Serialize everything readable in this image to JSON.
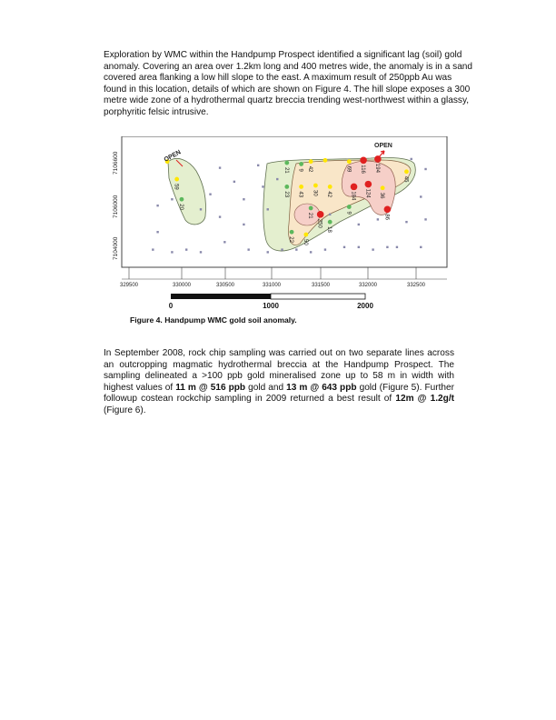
{
  "paragraph1": "Exploration by WMC within the Handpump Prospect identified a significant lag (soil) gold anomaly. Covering an area over 1.2km long and 400 metres wide, the anomaly is in a sand covered area flanking a low hill slope to the east. A maximum result of 250ppb Au was found in this location, details of which are shown on Figure 4. The hill slope exposes a 300 metre wide zone of a hydrothermal quartz breccia trending west-northwest within a glassy, porphyritic felsic intrusive.",
  "paragraph2": {
    "t1": "In September 2008, rock chip sampling was carried out on two separate lines across an outcropping magmatic hydrothermal breccia at the Handpump Prospect.  The sampling delineated a >100 ppb gold mineralised zone up to 58 m in width with highest values of ",
    "b1": "11 m @ 516 ppb",
    "t2": " gold and ",
    "b2": "13 m @ 643 ppb",
    "t3": " gold (Figure 5). Further followup costean rockchip sampling in 2009 returned a best result of ",
    "b3": "12m @ 1.2g/t",
    "t4": " (Figure 6)."
  },
  "figure": {
    "caption": "Figure 4. Handpump WMC gold soil anomaly.",
    "open_labels": [
      "OPEN",
      "OPEN"
    ],
    "y_ticks": [
      "7106600",
      "7106000",
      "7104000"
    ],
    "x_ticks": [
      "329500",
      "330000",
      "330500",
      "331000",
      "331500",
      "332000",
      "332500"
    ],
    "scale_labels": [
      "0",
      "1000",
      "2000"
    ],
    "colors": {
      "green": "#5cb85c",
      "yellow": "#ffe600",
      "red": "#e02020",
      "grey": "#8888aa",
      "zone_green": "#e4efcf",
      "zone_peach": "#f9e6c8",
      "zone_pink": "#f6cfc8"
    },
    "samples": [
      {
        "x": 329800,
        "y": 5.05,
        "v": "",
        "c": "grey"
      },
      {
        "x": 329950,
        "y": 5.3,
        "v": "",
        "c": "grey"
      },
      {
        "x": 329800,
        "y": 4.0,
        "v": "",
        "c": "grey"
      },
      {
        "x": 330250,
        "y": 4.9,
        "v": "",
        "c": "grey"
      },
      {
        "x": 330450,
        "y": 6.55,
        "v": "",
        "c": "grey"
      },
      {
        "x": 330350,
        "y": 5.5,
        "v": "",
        "c": "grey"
      },
      {
        "x": 330450,
        "y": 4.6,
        "v": "",
        "c": "grey"
      },
      {
        "x": 330500,
        "y": 3.6,
        "v": "",
        "c": "grey"
      },
      {
        "x": 330600,
        "y": 6.0,
        "v": "",
        "c": "grey"
      },
      {
        "x": 330700,
        "y": 5.3,
        "v": "",
        "c": "grey"
      },
      {
        "x": 330700,
        "y": 4.3,
        "v": "",
        "c": "grey"
      },
      {
        "x": 330750,
        "y": 3.3,
        "v": "",
        "c": "grey"
      },
      {
        "x": 330850,
        "y": 6.65,
        "v": "",
        "c": "grey"
      },
      {
        "x": 330900,
        "y": 5.8,
        "v": "",
        "c": "grey"
      },
      {
        "x": 330950,
        "y": 4.9,
        "v": "",
        "c": "grey"
      },
      {
        "x": 330950,
        "y": 3.2,
        "v": "",
        "c": "grey"
      },
      {
        "x": 331100,
        "y": 3.3,
        "v": "",
        "c": "grey"
      },
      {
        "x": 331250,
        "y": 3.3,
        "v": "",
        "c": "grey"
      },
      {
        "x": 331400,
        "y": 3.2,
        "v": "",
        "c": "grey"
      },
      {
        "x": 331550,
        "y": 3.3,
        "v": "",
        "c": "grey"
      },
      {
        "x": 331750,
        "y": 3.4,
        "v": "",
        "c": "grey"
      },
      {
        "x": 331900,
        "y": 3.4,
        "v": "",
        "c": "grey"
      },
      {
        "x": 332050,
        "y": 3.3,
        "v": "",
        "c": "grey"
      },
      {
        "x": 332200,
        "y": 3.4,
        "v": "",
        "c": "grey"
      },
      {
        "x": 332300,
        "y": 3.4,
        "v": "",
        "c": "grey"
      },
      {
        "x": 332550,
        "y": 3.4,
        "v": "",
        "c": "grey"
      },
      {
        "x": 331900,
        "y": 4.3,
        "v": "",
        "c": "grey"
      },
      {
        "x": 332100,
        "y": 4.5,
        "v": "",
        "c": "grey"
      },
      {
        "x": 332400,
        "y": 4.4,
        "v": "",
        "c": "grey"
      },
      {
        "x": 332600,
        "y": 4.5,
        "v": "",
        "c": "grey"
      },
      {
        "x": 332550,
        "y": 5.4,
        "v": "",
        "c": "grey"
      },
      {
        "x": 332600,
        "y": 6.5,
        "v": "",
        "c": "grey"
      },
      {
        "x": 332450,
        "y": 6.9,
        "v": "",
        "c": "grey"
      },
      {
        "x": 331050,
        "y": 6.1,
        "v": "",
        "c": "grey"
      },
      {
        "x": 331600,
        "y": 4.7,
        "v": "",
        "c": "grey"
      },
      {
        "x": 329750,
        "y": 3.3,
        "v": "",
        "c": "grey"
      },
      {
        "x": 329950,
        "y": 3.2,
        "v": "",
        "c": "grey"
      },
      {
        "x": 330100,
        "y": 3.3,
        "v": "",
        "c": "grey"
      },
      {
        "x": 330250,
        "y": 3.2,
        "v": "",
        "c": "grey"
      },
      {
        "x": 329900,
        "y": 6.8,
        "v": "",
        "c": "yellow"
      },
      {
        "x": 330000,
        "y": 6.1,
        "v": "59",
        "c": "yellow"
      },
      {
        "x": 330050,
        "y": 5.3,
        "v": "20",
        "c": "green"
      },
      {
        "x": 331150,
        "y": 6.75,
        "v": "21",
        "c": "green"
      },
      {
        "x": 331300,
        "y": 6.7,
        "v": "9",
        "c": "green"
      },
      {
        "x": 331150,
        "y": 5.8,
        "v": "23",
        "c": "green"
      },
      {
        "x": 331400,
        "y": 6.8,
        "v": "42",
        "c": "yellow"
      },
      {
        "x": 331550,
        "y": 6.85,
        "v": "",
        "c": "yellow"
      },
      {
        "x": 331300,
        "y": 5.8,
        "v": "43",
        "c": "yellow"
      },
      {
        "x": 331450,
        "y": 5.85,
        "v": "30",
        "c": "yellow"
      },
      {
        "x": 331600,
        "y": 5.8,
        "v": "42",
        "c": "yellow"
      },
      {
        "x": 331400,
        "y": 4.95,
        "v": "21",
        "c": "green"
      },
      {
        "x": 331500,
        "y": 4.7,
        "v": "250",
        "c": "red"
      },
      {
        "x": 331600,
        "y": 4.4,
        "v": "18",
        "c": "green"
      },
      {
        "x": 331200,
        "y": 4.0,
        "v": "22",
        "c": "green"
      },
      {
        "x": 331350,
        "y": 3.9,
        "v": "50",
        "c": "yellow"
      },
      {
        "x": 331800,
        "y": 6.8,
        "v": "69",
        "c": "yellow"
      },
      {
        "x": 331950,
        "y": 6.85,
        "v": "116",
        "c": "red"
      },
      {
        "x": 332100,
        "y": 6.9,
        "v": "194",
        "c": "red"
      },
      {
        "x": 331850,
        "y": 5.8,
        "v": "184",
        "c": "red"
      },
      {
        "x": 332000,
        "y": 5.9,
        "v": "124",
        "c": "red"
      },
      {
        "x": 332150,
        "y": 5.75,
        "v": "36",
        "c": "yellow"
      },
      {
        "x": 331800,
        "y": 5.0,
        "v": "9",
        "c": "green"
      },
      {
        "x": 332200,
        "y": 4.9,
        "v": "86",
        "c": "red"
      },
      {
        "x": 332400,
        "y": 6.4,
        "v": "45",
        "c": "yellow"
      }
    ]
  }
}
